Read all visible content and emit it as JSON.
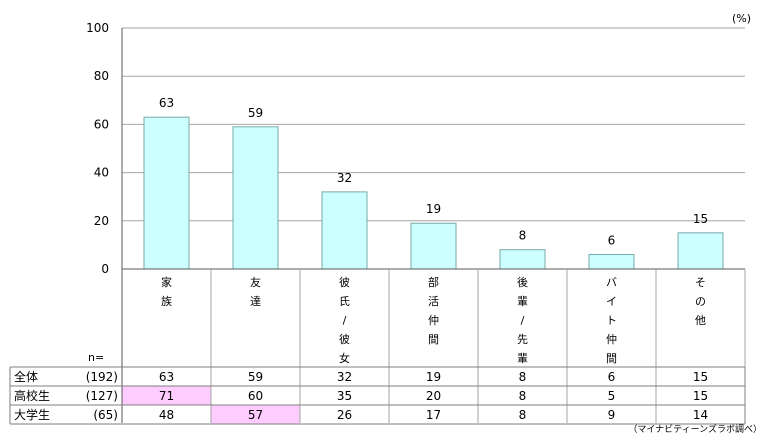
{
  "chart_data": {
    "type": "bar",
    "unit_label": "(%)",
    "ylim": [
      0,
      100
    ],
    "yticks": [
      0,
      20,
      40,
      60,
      80,
      100
    ],
    "grid": true,
    "bar_color": "#ccffff",
    "bar_border": "#7aa8a8",
    "highlight_color": "#ffccff",
    "categories": [
      "家族",
      "友達",
      "彼氏/彼女",
      "部活仲間",
      "後輩/先輩",
      "バイト仲間",
      "その他"
    ],
    "category_labels_vertical": [
      [
        "家",
        "族"
      ],
      [
        "友",
        "達"
      ],
      [
        "彼",
        "氏",
        "/",
        "彼",
        "女"
      ],
      [
        "部",
        "活",
        "仲",
        "間"
      ],
      [
        "後",
        "輩",
        "/",
        "先",
        "輩"
      ],
      [
        "バ",
        "イ",
        "ト",
        "仲",
        "間"
      ],
      [
        "そ",
        "の",
        "他"
      ]
    ],
    "values": [
      63,
      59,
      32,
      19,
      8,
      6,
      15
    ],
    "n_label": "n=",
    "table": [
      {
        "label": "全体",
        "n": "(192)",
        "values": [
          63,
          59,
          32,
          19,
          8,
          6,
          15
        ],
        "highlight": []
      },
      {
        "label": "高校生",
        "n": "(127)",
        "values": [
          71,
          60,
          35,
          20,
          8,
          5,
          15
        ],
        "highlight": [
          0
        ]
      },
      {
        "label": "大学生",
        "n": "(65)",
        "values": [
          48,
          57,
          26,
          17,
          8,
          9,
          14
        ],
        "highlight": [
          1
        ]
      }
    ],
    "source": "（マイナビティーンズラボ調べ）"
  }
}
